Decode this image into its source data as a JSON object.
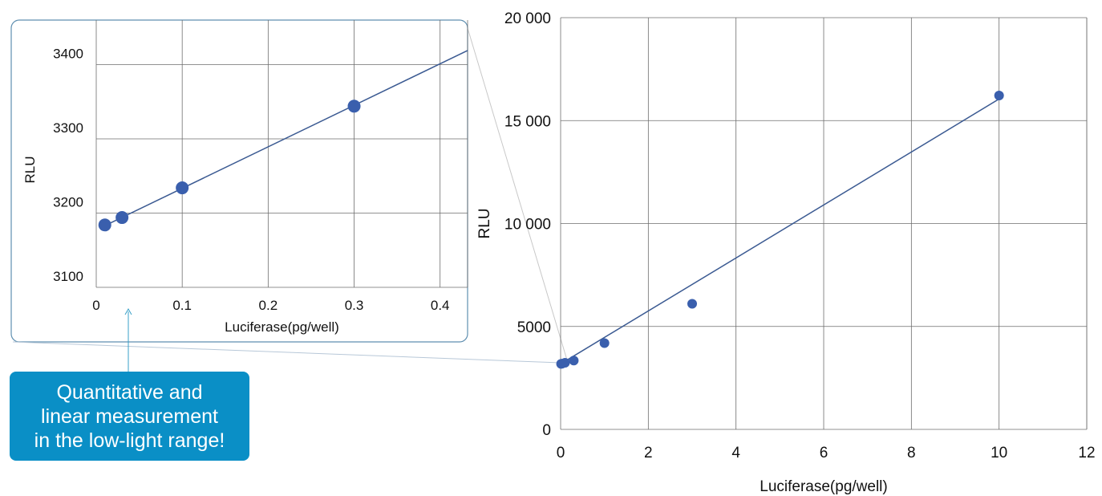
{
  "colors": {
    "marker": "#3a5fad",
    "line": "#3b5a92",
    "grid": "#6e6e6e",
    "callout": "#0a8fc6",
    "inset_border": "#5f8fb0"
  },
  "callout": {
    "text": "Quantitative and\nlinear measurement\nin the low-light range!"
  },
  "chart_data": [
    {
      "type": "scatter",
      "id": "main",
      "xlabel": "Luciferase(pg/well)",
      "ylabel": "RLU",
      "xlim": [
        0,
        12
      ],
      "ylim": [
        0,
        20000
      ],
      "xticks": [
        0,
        2,
        4,
        6,
        8,
        10,
        12
      ],
      "xtick_labels": [
        "0",
        "2",
        "4",
        "6",
        "8",
        "10",
        "12"
      ],
      "yticks": [
        0,
        5000,
        10000,
        15000,
        20000
      ],
      "ytick_labels": [
        "0",
        "5000",
        "10 000",
        "15 000",
        "20 000"
      ],
      "grid": true,
      "x": [
        0.01,
        0.03,
        0.1,
        0.3,
        1,
        3,
        10
      ],
      "y": [
        3184,
        3194,
        3234,
        3344,
        4190,
        6100,
        16220
      ],
      "trendline": {
        "type": "linear",
        "x": [
          0,
          10
        ],
        "y": [
          3180,
          16050
        ]
      }
    },
    {
      "type": "scatter",
      "id": "inset",
      "xlabel": "Luciferase(pg/well)",
      "ylabel": "RLU",
      "xlim": [
        0,
        0.432
      ],
      "ylim": [
        3100,
        3460
      ],
      "xticks": [
        0,
        0.1,
        0.2,
        0.3,
        0.4
      ],
      "xtick_labels": [
        "0",
        "0.1",
        "0.2",
        "0.3",
        "0.4"
      ],
      "yticks": [
        3100,
        3200,
        3300,
        3400
      ],
      "ytick_labels": [
        "3100",
        "3200",
        "3300",
        "3400"
      ],
      "grid": true,
      "x": [
        0.01,
        0.03,
        0.1,
        0.3
      ],
      "y": [
        3184,
        3194,
        3234,
        3344
      ],
      "trendline": {
        "type": "linear",
        "x": [
          0.01,
          0.432
        ],
        "y": [
          3183,
          3419
        ]
      }
    }
  ]
}
